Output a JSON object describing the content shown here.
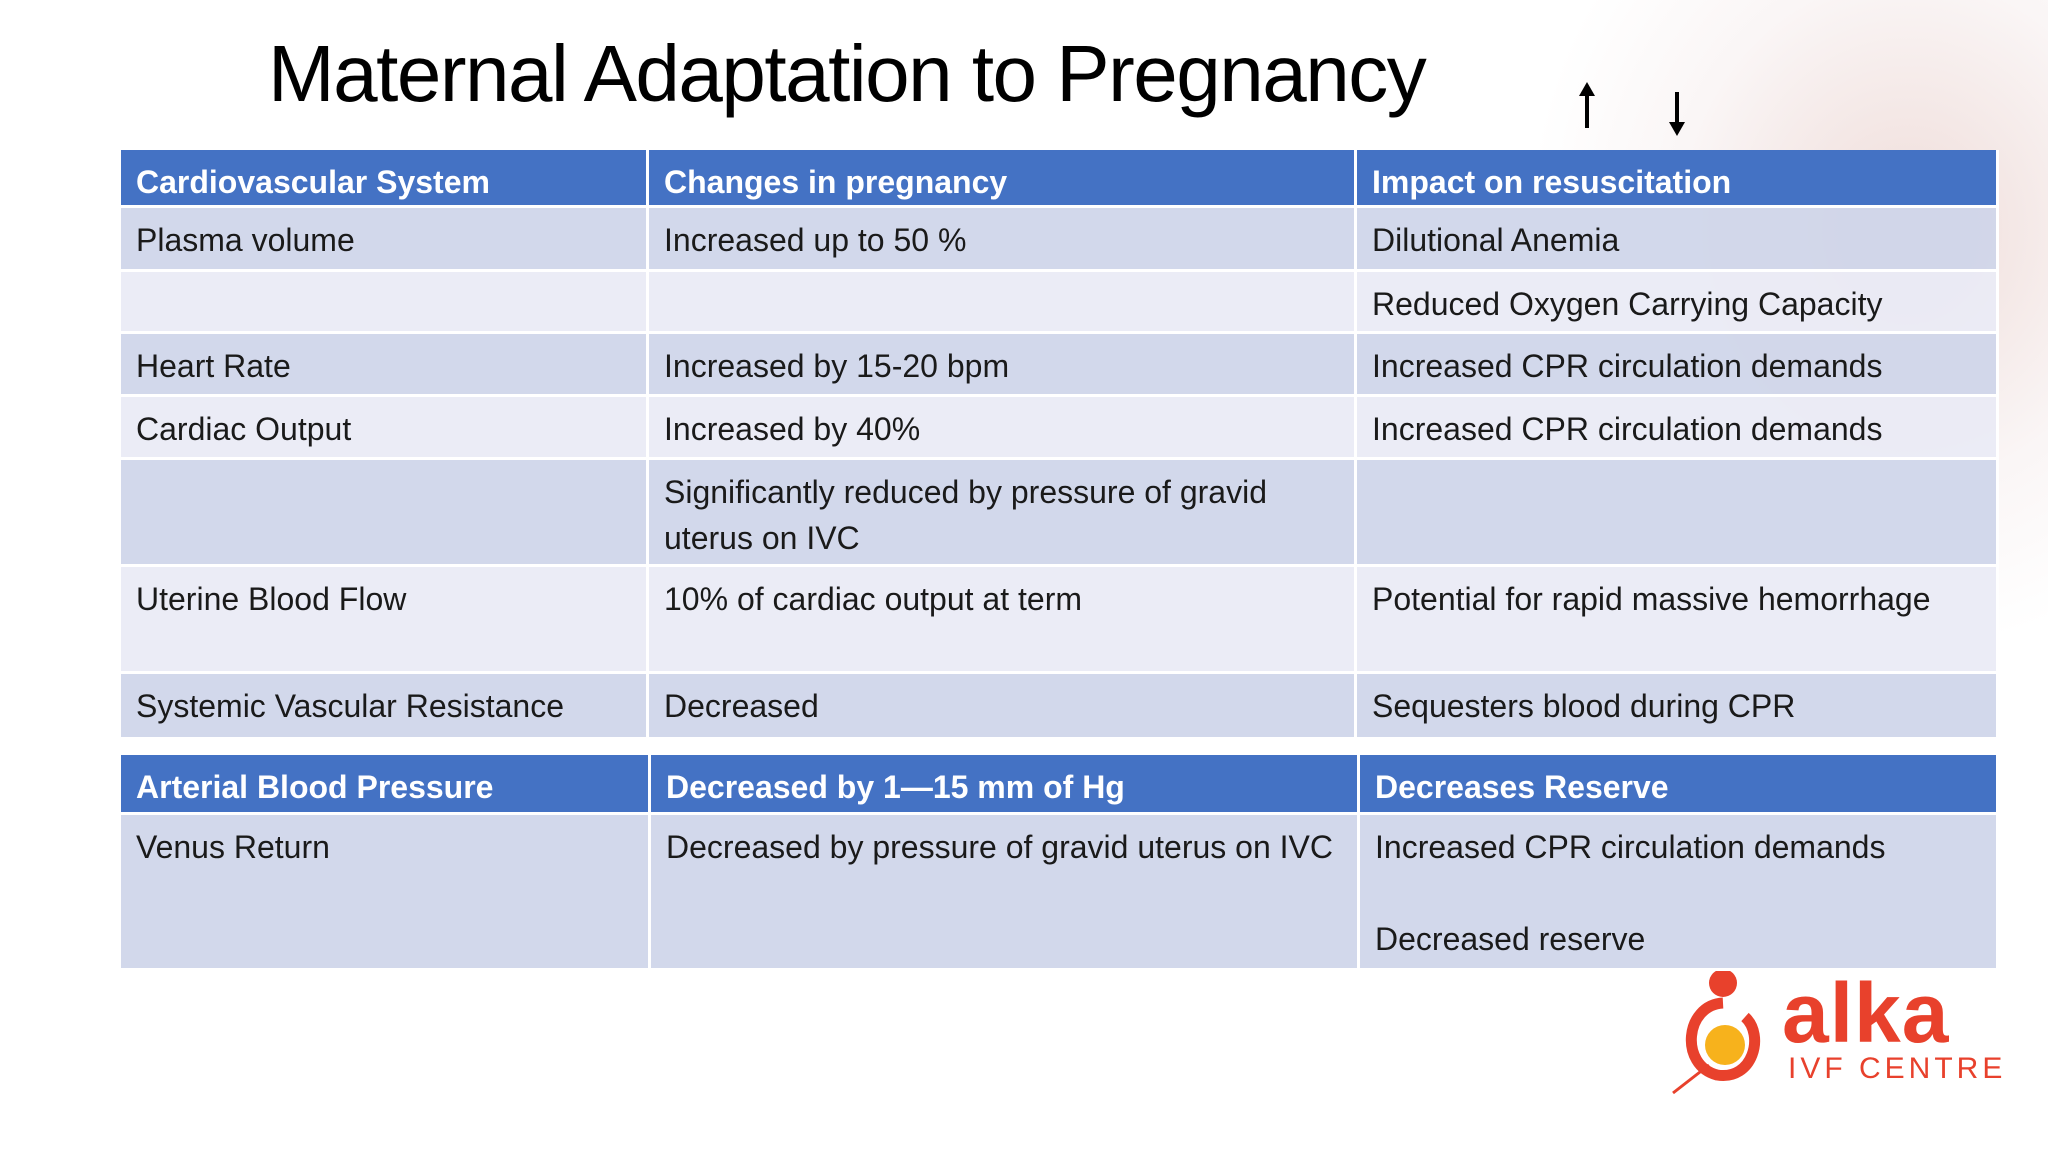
{
  "title": "Maternal Adaptation to Pregnancy",
  "table1": {
    "header": [
      "Cardiovascular System",
      "Changes in pregnancy",
      "Impact on resuscitation"
    ],
    "rows": [
      [
        "Plasma volume",
        "Increased up to 50 %",
        "Dilutional Anemia"
      ],
      [
        null,
        null,
        "Reduced Oxygen Carrying Capacity"
      ],
      [
        "Heart Rate",
        "Increased by 15-20 bpm",
        "Increased CPR circulation demands"
      ],
      [
        "Cardiac Output",
        "Increased by 40%",
        "Increased CPR circulation demands"
      ],
      [
        null,
        "Significantly reduced by pressure of gravid uterus on IVC",
        null
      ],
      [
        "Uterine Blood Flow",
        "10% of cardiac output at term",
        "Potential for rapid massive hemorrhage"
      ],
      [
        "Systemic Vascular Resistance",
        "Decreased",
        "Sequesters blood during CPR"
      ]
    ]
  },
  "table2": {
    "header": [
      "Arterial Blood Pressure",
      "Decreased by 1—15 mm of Hg",
      "Decreases Reserve"
    ],
    "rows": [
      [
        "Venus Return",
        "Decreased by pressure of gravid uterus on IVC",
        [
          "Increased CPR circulation demands",
          "Decreased reserve"
        ]
      ]
    ]
  },
  "logo": {
    "name": "alka",
    "tagline": "IVF CENTRE"
  }
}
